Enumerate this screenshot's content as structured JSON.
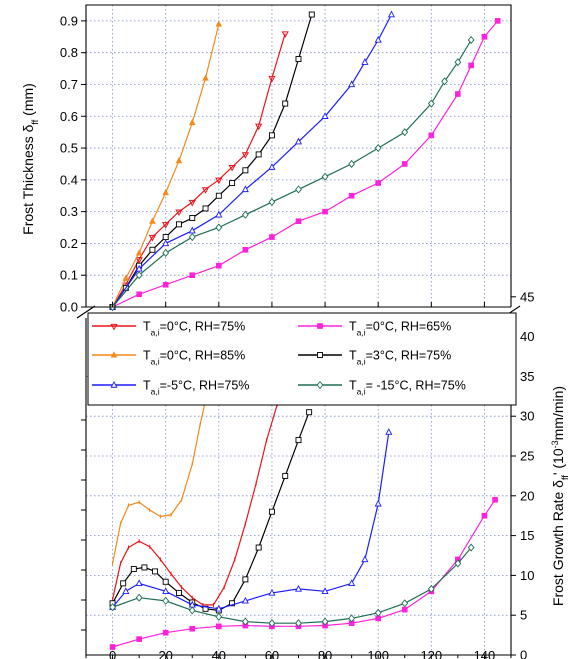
{
  "chart_data": [
    {
      "type": "line",
      "panel": "top",
      "ylabel": "Frost Thickness  δ_ff (mm)",
      "xlim": [
        -10,
        150
      ],
      "ylim": [
        0,
        0.95
      ],
      "yticks": [
        "0.0",
        "0.1",
        "0.2",
        "0.3",
        "0.4",
        "0.5",
        "0.6",
        "0.7",
        "0.8",
        "0.9"
      ],
      "grid": true,
      "series": [
        {
          "key": "a0_75",
          "color": "#e8141b",
          "marker": "circle-down",
          "x": [
            0,
            5,
            10,
            15,
            20,
            25,
            30,
            35,
            40,
            45,
            50,
            55,
            60,
            65
          ],
          "y": [
            0,
            0.07,
            0.15,
            0.22,
            0.26,
            0.3,
            0.33,
            0.37,
            0.4,
            0.44,
            0.48,
            0.57,
            0.72,
            0.86
          ]
        },
        {
          "key": "a0_65",
          "color": "#ff22dd",
          "marker": "square-filled",
          "x": [
            0,
            10,
            20,
            30,
            40,
            50,
            60,
            70,
            80,
            90,
            100,
            110,
            120,
            130,
            135,
            140,
            145
          ],
          "y": [
            0,
            0.04,
            0.07,
            0.1,
            0.13,
            0.18,
            0.22,
            0.27,
            0.3,
            0.35,
            0.39,
            0.45,
            0.54,
            0.67,
            0.76,
            0.85,
            0.9
          ]
        },
        {
          "key": "a0_85",
          "color": "#f28a1c",
          "marker": "triangle-filled",
          "x": [
            0,
            5,
            10,
            15,
            20,
            25,
            30,
            35,
            40
          ],
          "y": [
            0,
            0.09,
            0.17,
            0.27,
            0.36,
            0.46,
            0.58,
            0.72,
            0.89
          ]
        },
        {
          "key": "a3_75",
          "color": "#000000",
          "marker": "square-open",
          "x": [
            0,
            5,
            10,
            15,
            20,
            25,
            30,
            35,
            40,
            45,
            50,
            55,
            60,
            65,
            70,
            75
          ],
          "y": [
            0,
            0.06,
            0.13,
            0.18,
            0.22,
            0.26,
            0.28,
            0.31,
            0.35,
            0.39,
            0.43,
            0.48,
            0.54,
            0.64,
            0.78,
            0.92
          ]
        },
        {
          "key": "am5_75",
          "color": "#1d1dff",
          "marker": "triangle-open",
          "x": [
            0,
            10,
            20,
            30,
            40,
            50,
            60,
            70,
            80,
            90,
            95,
            100,
            105
          ],
          "y": [
            0,
            0.12,
            0.2,
            0.24,
            0.29,
            0.37,
            0.44,
            0.52,
            0.6,
            0.7,
            0.77,
            0.84,
            0.92
          ]
        },
        {
          "key": "am15_75",
          "color": "#1f6e55",
          "marker": "diamond-open",
          "x": [
            0,
            10,
            20,
            30,
            40,
            50,
            60,
            70,
            80,
            90,
            100,
            110,
            120,
            125,
            130,
            135
          ],
          "y": [
            0,
            0.1,
            0.17,
            0.22,
            0.25,
            0.29,
            0.33,
            0.37,
            0.41,
            0.45,
            0.5,
            0.55,
            0.64,
            0.71,
            0.77,
            0.84
          ]
        }
      ]
    },
    {
      "type": "line",
      "panel": "bottom",
      "ylabel": "Frost Growth Rate  δ_ff' (10⁻³mm/min)",
      "xlim": [
        -10,
        150
      ],
      "ylim": [
        0,
        48
      ],
      "xticks": [
        "0",
        "20",
        "40",
        "60",
        "80",
        "100",
        "120",
        "140"
      ],
      "yticks": [
        "0",
        "5",
        "10",
        "15",
        "20",
        "25",
        "30",
        "35",
        "40",
        "45"
      ],
      "grid": true,
      "series": [
        {
          "key": "a0_75",
          "color": "#e8141b",
          "marker": "tick",
          "x": [
            0,
            3,
            6,
            10,
            14,
            18,
            22,
            26,
            30,
            34,
            38,
            42,
            46,
            50,
            54,
            58,
            62,
            64
          ],
          "y": [
            7.0,
            11.5,
            13.5,
            14.3,
            13.6,
            12.0,
            10.2,
            8.5,
            7.2,
            6.3,
            6.3,
            8.5,
            12.0,
            16.5,
            21.5,
            27.0,
            31.5,
            33.5
          ]
        },
        {
          "key": "a0_65",
          "color": "#ff22dd",
          "marker": "square-filled",
          "x": [
            0,
            10,
            20,
            30,
            40,
            50,
            60,
            70,
            80,
            90,
            100,
            110,
            120,
            130,
            140,
            144
          ],
          "y": [
            1.0,
            2.0,
            2.8,
            3.3,
            3.6,
            3.7,
            3.6,
            3.6,
            3.7,
            4.0,
            4.6,
            5.7,
            8.0,
            12.0,
            17.5,
            19.5
          ]
        },
        {
          "key": "a0_85",
          "color": "#f28a1c",
          "marker": "tick",
          "x": [
            0,
            3,
            6,
            10,
            14,
            18,
            22,
            26,
            30,
            33,
            36,
            38
          ],
          "y": [
            11.5,
            16.5,
            18.8,
            19.2,
            18.2,
            17.4,
            17.6,
            19.5,
            24.0,
            29.0,
            33.5,
            35.5
          ]
        },
        {
          "key": "a3_75",
          "color": "#000000",
          "marker": "square-open",
          "x": [
            0,
            4,
            8,
            12,
            16,
            20,
            25,
            30,
            35,
            40,
            45,
            50,
            55,
            60,
            65,
            70,
            74
          ],
          "y": [
            6.5,
            9.0,
            10.8,
            11.0,
            10.5,
            9.2,
            7.8,
            6.6,
            5.8,
            5.6,
            6.5,
            9.5,
            13.5,
            18.0,
            22.5,
            27.0,
            30.5
          ]
        },
        {
          "key": "am5_75",
          "color": "#1d1dff",
          "marker": "triangle-open",
          "x": [
            0,
            5,
            10,
            20,
            30,
            40,
            50,
            60,
            70,
            80,
            90,
            95,
            100,
            104
          ],
          "y": [
            6.0,
            8.0,
            9.0,
            8.0,
            6.3,
            5.8,
            6.8,
            7.8,
            8.3,
            8.0,
            9.0,
            12.0,
            19.0,
            28.0
          ]
        },
        {
          "key": "am15_75",
          "color": "#1f6e55",
          "marker": "diamond-open",
          "x": [
            0,
            10,
            20,
            30,
            40,
            50,
            60,
            70,
            80,
            90,
            100,
            110,
            120,
            130,
            135
          ],
          "y": [
            6.0,
            7.2,
            6.8,
            5.6,
            4.8,
            4.2,
            4.0,
            4.0,
            4.2,
            4.6,
            5.3,
            6.5,
            8.3,
            11.5,
            13.5
          ]
        }
      ]
    }
  ],
  "legend": [
    {
      "key": "a0_75",
      "color": "#e8141b",
      "marker": "circle-down",
      "main": "T",
      "sub": "a,i",
      "rest": "=0°C, RH=75%"
    },
    {
      "key": "a0_65",
      "color": "#ff22dd",
      "marker": "square-filled",
      "main": "T",
      "sub": "a,i",
      "rest": "=0°C, RH=65%"
    },
    {
      "key": "a0_85",
      "color": "#f28a1c",
      "marker": "triangle-filled",
      "main": "T",
      "sub": "a,i",
      "rest": "=0°C, RH=85%"
    },
    {
      "key": "a3_75",
      "color": "#000000",
      "marker": "square-open",
      "main": "T",
      "sub": "a,i",
      "rest": "=3°C, RH=75%"
    },
    {
      "key": "am5_75",
      "color": "#1d1dff",
      "marker": "triangle-open",
      "main": "T",
      "sub": "a,i",
      "rest": "=-5°C, RH=75%"
    },
    {
      "key": "am15_75",
      "color": "#1f6e55",
      "marker": "diamond-open",
      "main": "T",
      "sub": "a,i",
      "rest": "= -15°C, RH=75%"
    }
  ],
  "labels": {
    "top_ylabel_main": "Frost Thickness  δ",
    "top_ylabel_sub": "ff",
    "top_ylabel_unit": " (mm)",
    "bottom_ylabel_main": "Frost Growth Rate  δ",
    "bottom_ylabel_sub": "ff",
    "bottom_ylabel_mid": "' (10",
    "bottom_ylabel_sup": "-3",
    "bottom_ylabel_unit": "mm/min)"
  }
}
